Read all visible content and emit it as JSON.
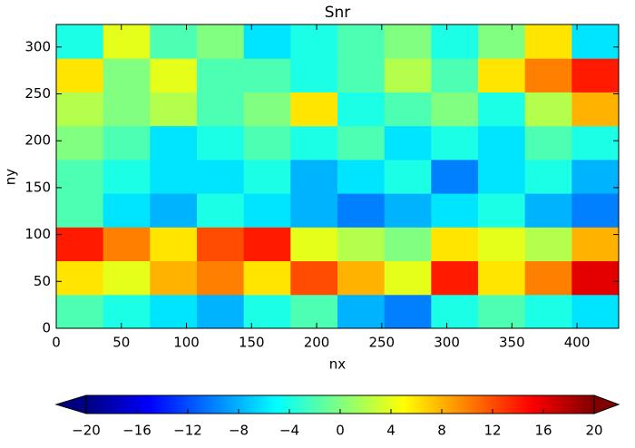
{
  "chart_data": {
    "type": "heatmap",
    "title": "Snr",
    "x_label": "nx",
    "y_label": "ny",
    "colormap": "jet",
    "colorbar_extend": "both",
    "xlim": [
      0,
      432
    ],
    "ylim": [
      0,
      324
    ],
    "xticks": [
      0,
      50,
      100,
      150,
      200,
      250,
      300,
      350,
      400
    ],
    "yticks": [
      0,
      50,
      100,
      150,
      200,
      250,
      300
    ],
    "x_edges": [
      0,
      36,
      72,
      108,
      144,
      180,
      216,
      252,
      288,
      324,
      360,
      396,
      432
    ],
    "y_edges": [
      0,
      36,
      72,
      108,
      144,
      180,
      216,
      252,
      288,
      324
    ],
    "clim": [
      -20,
      20
    ],
    "colorbar_ticks": [
      {
        "value": -20,
        "label": "−20"
      },
      {
        "value": -16,
        "label": "−16"
      },
      {
        "value": -12,
        "label": "−12"
      },
      {
        "value": -8,
        "label": "−8"
      },
      {
        "value": -4,
        "label": "−4"
      },
      0,
      4,
      8,
      12,
      16,
      20
    ],
    "values": [
      [
        -2,
        -4,
        -6,
        -8,
        -4,
        -2,
        -8,
        -10,
        -4,
        -2,
        -4,
        -6
      ],
      [
        6,
        4,
        8,
        10,
        6,
        12,
        8,
        4,
        14,
        6,
        10,
        16
      ],
      [
        14,
        10,
        6,
        12,
        14,
        4,
        2,
        0,
        6,
        4,
        2,
        8
      ],
      [
        -2,
        -6,
        -8,
        -4,
        -6,
        -8,
        -10,
        -8,
        -6,
        -4,
        -8,
        -10
      ],
      [
        -2,
        -4,
        -6,
        -6,
        -4,
        -8,
        -6,
        -4,
        -10,
        -6,
        -4,
        -8
      ],
      [
        0,
        -2,
        -6,
        -4,
        -2,
        -4,
        -2,
        -6,
        -4,
        -6,
        -2,
        -4
      ],
      [
        2,
        0,
        2,
        -2,
        0,
        6,
        -4,
        -2,
        0,
        -4,
        2,
        8
      ],
      [
        6,
        0,
        4,
        -2,
        -2,
        -4,
        -2,
        2,
        -2,
        6,
        10,
        14
      ],
      [
        -4,
        4,
        -2,
        0,
        -6,
        -4,
        -2,
        0,
        -4,
        0,
        6,
        -6
      ]
    ]
  }
}
